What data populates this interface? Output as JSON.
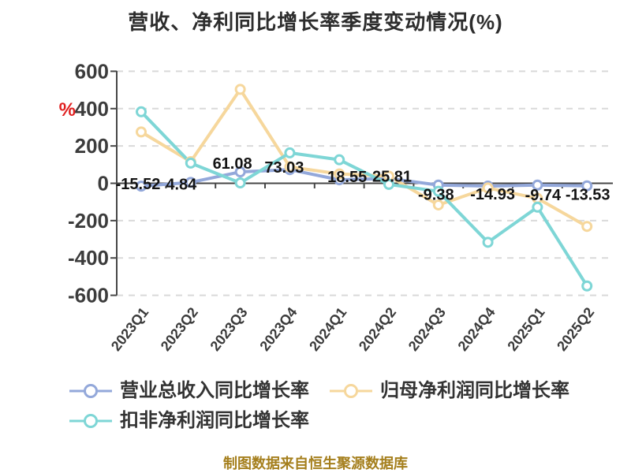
{
  "title": "营收、净利同比增长率季度变动情况(%)",
  "footer": "制图数据来自恒生聚源数据库",
  "y_axis": {
    "unit_label": "%",
    "unit_color": "#e01f1f",
    "ticks": [
      600,
      400,
      200,
      0,
      -200,
      -400,
      -600
    ]
  },
  "legend": [
    {
      "label": "营业总收入同比增长率",
      "color": "#93a8da"
    },
    {
      "label": "归母净利润同比增长率",
      "color": "#f6d79c"
    },
    {
      "label": "扣非净利润同比增长率",
      "color": "#7ed6d6"
    }
  ],
  "chart_data": {
    "type": "line",
    "title": "营收、净利同比增长率季度变动情况(%)",
    "categories": [
      "2023Q1",
      "2023Q2",
      "2023Q3",
      "2023Q4",
      "2024Q1",
      "2024Q2",
      "2024Q3",
      "2024Q4",
      "2025Q1",
      "2025Q2"
    ],
    "series": [
      {
        "name": "营业总收入同比增长率",
        "color": "#93a8da",
        "values": [
          -15.52,
          4.84,
          61.08,
          73.03,
          18.55,
          25.81,
          -9.38,
          -14.93,
          -9.74,
          -13.53
        ],
        "value_labels": [
          "-15.52",
          "4.84",
          "61.08",
          "73.03",
          "18.55",
          "25.81",
          "-9.38",
          "-14.93",
          "-9.74",
          "-13.53"
        ]
      },
      {
        "name": "归母净利润同比增长率",
        "color": "#f6d79c",
        "values": [
          275,
          116,
          503,
          88,
          50,
          38,
          -116,
          -25,
          -81,
          -231
        ]
      },
      {
        "name": "扣非净利润同比增长率",
        "color": "#7ed6d6",
        "values": [
          383,
          108,
          2,
          163,
          126,
          -6,
          -43,
          -316,
          -128,
          -550
        ]
      }
    ],
    "ylim": [
      -600,
      600
    ],
    "y_tick_step": 200,
    "grid": "dashed-horizontal",
    "legend_position": "bottom"
  }
}
